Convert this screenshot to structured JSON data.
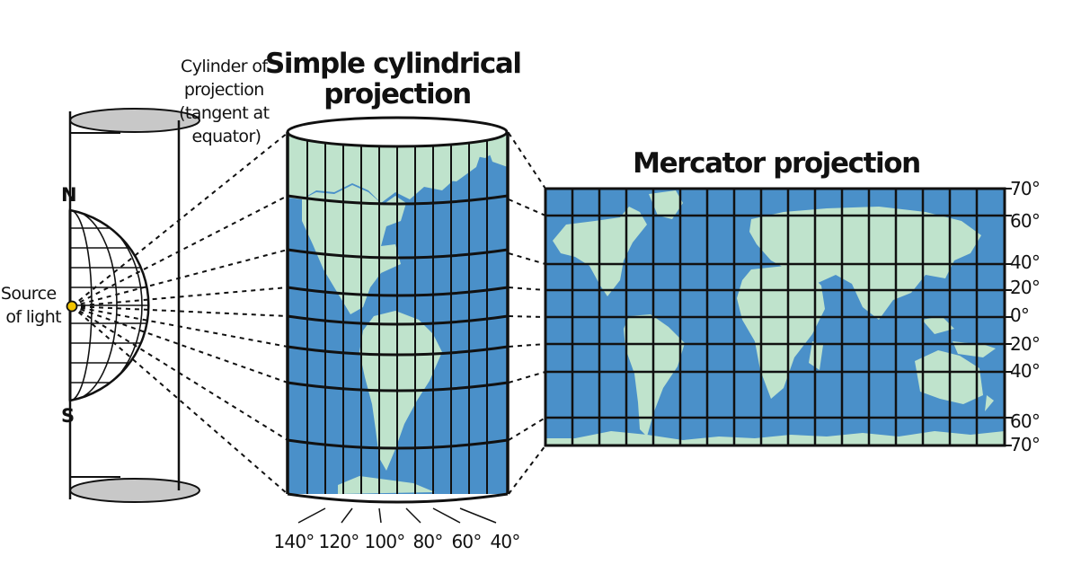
{
  "colors": {
    "ocean": "#4a90c9",
    "land": "#bfe3cc",
    "ink": "#111111",
    "cap": "#c8c8c8",
    "light": "#f2c400"
  },
  "labels": {
    "cylinder_note": [
      "Cylinder of",
      "projection",
      "(tangent at",
      "equator)"
    ],
    "simple_title": [
      "Simple cylindrical",
      "projection"
    ],
    "mercator_title": "Mercator projection",
    "source": [
      "Source",
      "of light"
    ],
    "north": "N",
    "south": "S"
  },
  "longitude_ticks": [
    "140°",
    "120°",
    "100°",
    "80°",
    "60°",
    "40°"
  ],
  "latitude_ticks": [
    "70°",
    "60°",
    "40°",
    "20°",
    "0°",
    "20°",
    "40°",
    "60°",
    "70°"
  ]
}
